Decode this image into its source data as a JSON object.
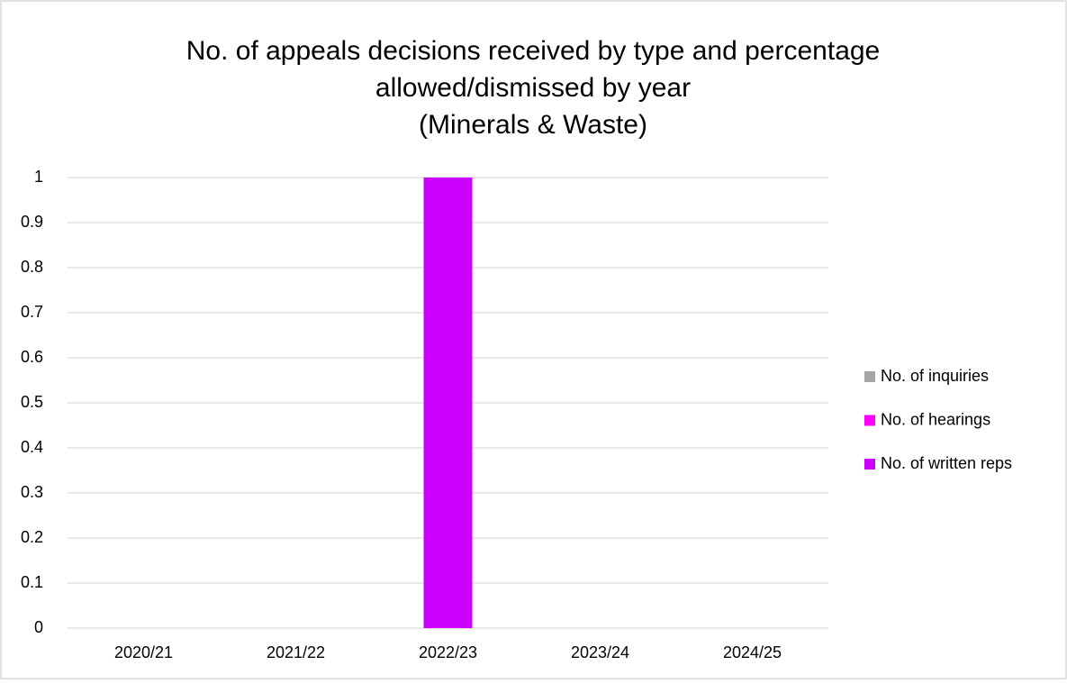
{
  "chart_data": {
    "type": "stacked_bar",
    "title": [
      "No. of appeals decisions received  by type and percentage",
      "allowed/dismissed by year",
      "(Minerals & Waste)"
    ],
    "categories": [
      "2020/21",
      "2021/22",
      "2022/23",
      "2023/24",
      "2024/25"
    ],
    "series": [
      {
        "name": "No. of written reps",
        "color": "#cc00ff",
        "values": [
          0,
          0,
          1,
          0,
          0
        ]
      },
      {
        "name": "No. of hearings",
        "color": "#ff00ff",
        "values": [
          0,
          0,
          0,
          0,
          0
        ]
      },
      {
        "name": "No. of inquiries",
        "color": "#a5a5a5",
        "values": [
          0,
          0,
          0,
          0,
          0
        ]
      }
    ],
    "ylim": [
      0,
      1
    ],
    "yticks": [
      0,
      0.1,
      0.2,
      0.3,
      0.4,
      0.5,
      0.6,
      0.7,
      0.8,
      0.9,
      1
    ],
    "grid": true,
    "legend": "right"
  }
}
